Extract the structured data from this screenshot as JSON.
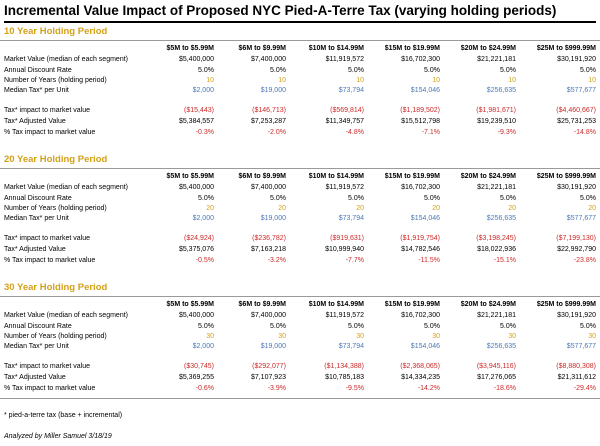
{
  "title": "Incremental Value Impact of Proposed NYC Pied-A-Terre Tax (varying holding periods)",
  "columns": [
    "$5M to $5.99M",
    "$6M to $9.99M",
    "$10M to $14.99M",
    "$15M to $19.99M",
    "$20M to $24.99M",
    "$25M to $999.99M"
  ],
  "labels": {
    "market_value": "Market Value (median of each segment)",
    "discount_rate": "Annual Discount Rate",
    "years": "Number of Years (holding period)",
    "median_tax": "Median Tax* per Unit",
    "tax_impact": "Tax* impact to market value",
    "adjusted_value": "Tax* Adjusted Value",
    "pct_impact": "% Tax impact to market value"
  },
  "sections": [
    {
      "heading": "10 Year Holding Period",
      "market_value": [
        "$5,400,000",
        "$7,400,000",
        "$11,919,572",
        "$16,702,300",
        "$21,221,181",
        "$30,191,920"
      ],
      "discount_rate": [
        "5.0%",
        "5.0%",
        "5.0%",
        "5.0%",
        "5.0%",
        "5.0%"
      ],
      "years": [
        "10",
        "10",
        "10",
        "10",
        "10",
        "10"
      ],
      "median_tax": [
        "$2,000",
        "$19,000",
        "$73,794",
        "$154,046",
        "$256,635",
        "$577,677"
      ],
      "tax_impact": [
        "($15,443)",
        "($146,713)",
        "($569,814)",
        "($1,189,502)",
        "($1,981,671)",
        "($4,460,667)"
      ],
      "adjusted_value": [
        "$5,384,557",
        "$7,253,287",
        "$11,349,757",
        "$15,512,798",
        "$19,239,510",
        "$25,731,253"
      ],
      "pct_impact": [
        "-0.3%",
        "-2.0%",
        "-4.8%",
        "-7.1%",
        "-9.3%",
        "-14.8%"
      ]
    },
    {
      "heading": "20 Year Holding Period",
      "market_value": [
        "$5,400,000",
        "$7,400,000",
        "$11,919,572",
        "$16,702,300",
        "$21,221,181",
        "$30,191,920"
      ],
      "discount_rate": [
        "5.0%",
        "5.0%",
        "5.0%",
        "5.0%",
        "5.0%",
        "5.0%"
      ],
      "years": [
        "20",
        "20",
        "20",
        "20",
        "20",
        "20"
      ],
      "median_tax": [
        "$2,000",
        "$19,000",
        "$73,794",
        "$154,046",
        "$256,635",
        "$577,677"
      ],
      "tax_impact": [
        "($24,924)",
        "($236,782)",
        "($919,631)",
        "($1,919,754)",
        "($3,198,245)",
        "($7,199,130)"
      ],
      "adjusted_value": [
        "$5,375,076",
        "$7,163,218",
        "$10,999,940",
        "$14,782,546",
        "$18,022,936",
        "$22,992,790"
      ],
      "pct_impact": [
        "-0.5%",
        "-3.2%",
        "-7.7%",
        "-11.5%",
        "-15.1%",
        "-23.8%"
      ]
    },
    {
      "heading": "30 Year Holding Period",
      "market_value": [
        "$5,400,000",
        "$7,400,000",
        "$11,919,572",
        "$16,702,300",
        "$21,221,181",
        "$30,191,920"
      ],
      "discount_rate": [
        "5.0%",
        "5.0%",
        "5.0%",
        "5.0%",
        "5.0%",
        "5.0%"
      ],
      "years": [
        "30",
        "30",
        "30",
        "30",
        "30",
        "30"
      ],
      "median_tax": [
        "$2,000",
        "$19,000",
        "$73,794",
        "$154,046",
        "$256,635",
        "$577,677"
      ],
      "tax_impact": [
        "($30,745)",
        "($292,077)",
        "($1,134,388)",
        "($2,368,065)",
        "($3,945,116)",
        "($8,880,308)"
      ],
      "adjusted_value": [
        "$5,369,255",
        "$7,107,923",
        "$10,785,183",
        "$14,334,235",
        "$17,276,065",
        "$21,311,612"
      ],
      "pct_impact": [
        "-0.6%",
        "-3.9%",
        "-9.5%",
        "-14.2%",
        "-18.6%",
        "-29.4%"
      ]
    }
  ],
  "footnote": "* pied-a-terre tax (base + incremental)",
  "credit": "Analyzed by Miller Samuel 3/18/19"
}
